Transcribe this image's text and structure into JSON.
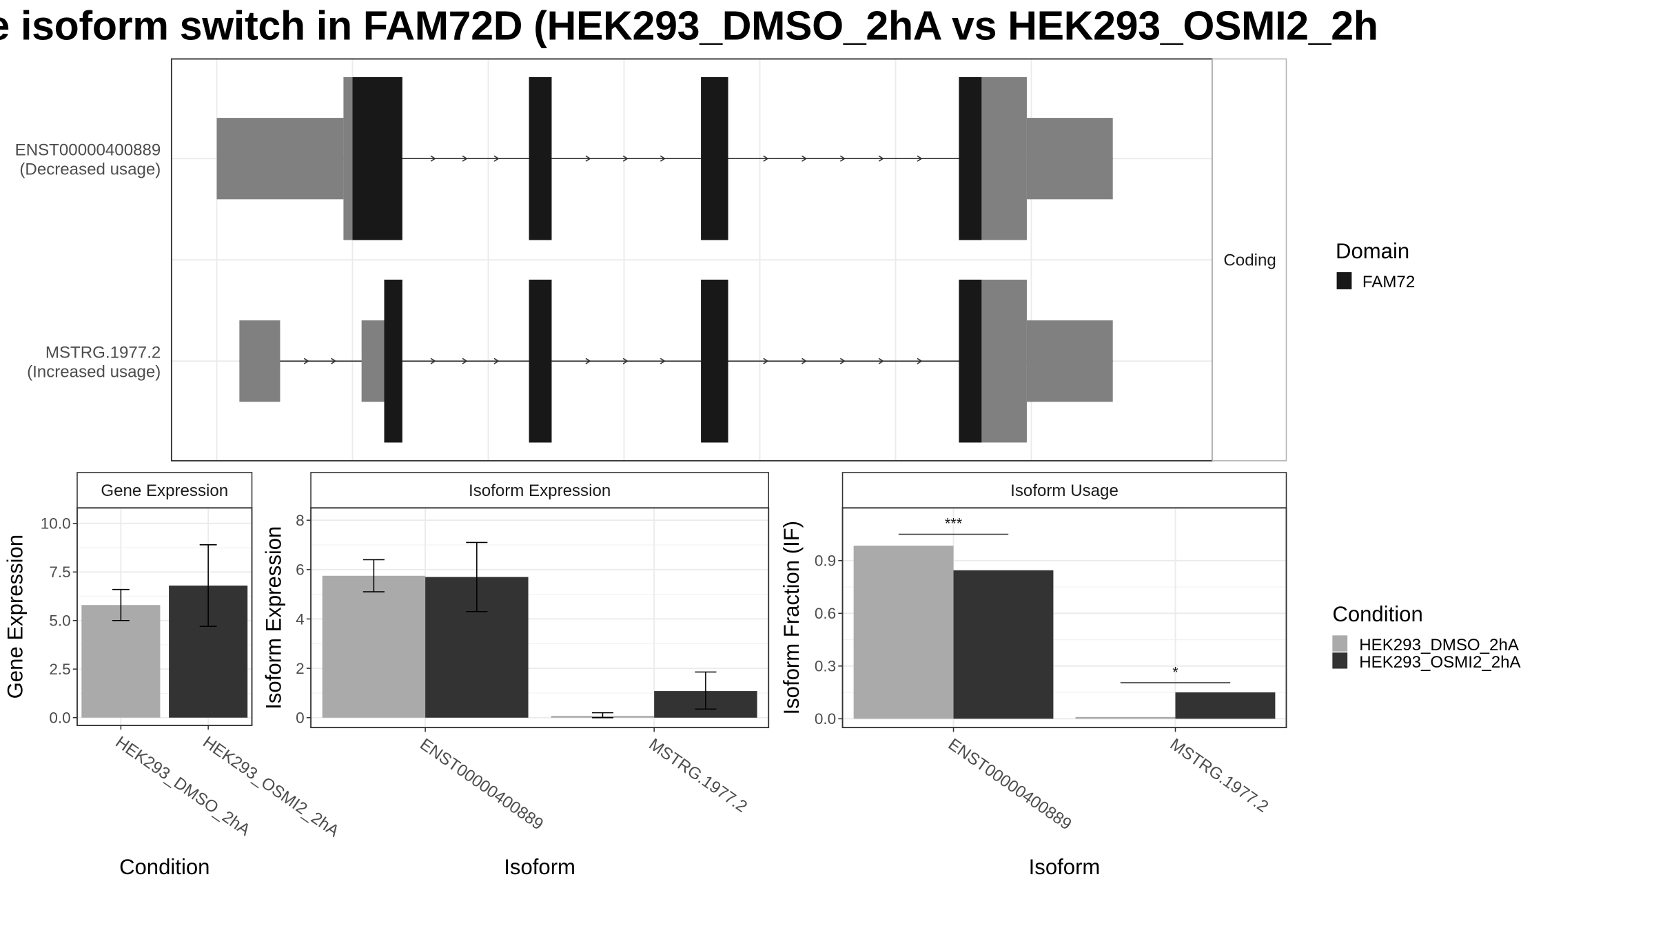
{
  "title": "e isoform switch in FAM72D (HEK293_DMSO_2hA vs HEK293_OSMI2_2h",
  "colors": {
    "cond1": "#aaaaaa",
    "cond2": "#333333",
    "utr": "#808080",
    "domain": "#181818",
    "grid": "#ebebeb",
    "panel_border": "#333333",
    "strip_fill": "#ffffff"
  },
  "chart_data": [
    {
      "type": "gene-structure",
      "facet_label": "Coding",
      "transcripts": [
        {
          "id": "ENST00000400889",
          "usage": "(Decreased usage)",
          "utr": [
            [
              0.0,
              1.4
            ],
            [
              8.95,
              9.9
            ]
          ],
          "coding": [
            [
              1.4,
              2.05
            ],
            [
              3.45,
              3.7
            ],
            [
              5.35,
              5.65
            ],
            [
              8.2,
              8.95
            ]
          ],
          "domain": [
            [
              1.5,
              2.05
            ],
            [
              3.45,
              3.7
            ],
            [
              5.35,
              5.65
            ],
            [
              8.2,
              8.45
            ]
          ]
        },
        {
          "id": "MSTRG.1977.2",
          "usage": "(Increased usage)",
          "utr": [
            [
              0.25,
              0.7
            ],
            [
              1.6,
              1.85
            ],
            [
              8.95,
              9.9
            ]
          ],
          "coding": [
            [
              1.85,
              2.05
            ],
            [
              3.45,
              3.7
            ],
            [
              5.35,
              5.65
            ],
            [
              8.2,
              8.95
            ]
          ],
          "domain": [
            [
              1.85,
              2.05
            ],
            [
              3.45,
              3.7
            ],
            [
              5.35,
              5.65
            ],
            [
              8.2,
              8.45
            ]
          ]
        }
      ],
      "legend": {
        "title": "Domain",
        "items": [
          "FAM72"
        ]
      }
    },
    {
      "type": "bar",
      "strip": "Gene Expression",
      "xlabel": "Condition",
      "ylabel": "Gene Expression",
      "ylim": [
        -0.4,
        10.8
      ],
      "yticks": [
        "0.0",
        "2.5",
        "5.0",
        "7.5",
        "10.0"
      ],
      "categories": [
        "HEK293_DMSO_2hA",
        "HEK293_OSMI2_2hA"
      ],
      "values": [
        5.8,
        6.8
      ],
      "errors": [
        [
          5.0,
          6.6
        ],
        [
          4.7,
          8.9
        ]
      ]
    },
    {
      "type": "bar",
      "strip": "Isoform Expression",
      "xlabel": "Isoform",
      "ylabel": "Isoform Expression",
      "ylim": [
        -0.4,
        8.5
      ],
      "yticks": [
        "0",
        "2",
        "4",
        "6",
        "8"
      ],
      "categories": [
        "ENST00000400889",
        "MSTRG.1977.2"
      ],
      "series": [
        {
          "name": "HEK293_DMSO_2hA",
          "values": [
            5.75,
            0.07
          ],
          "errors": [
            [
              5.1,
              6.4
            ],
            [
              0.0,
              0.2
            ]
          ]
        },
        {
          "name": "HEK293_OSMI2_2hA",
          "values": [
            5.7,
            1.08
          ],
          "errors": [
            [
              4.3,
              7.1
            ],
            [
              0.35,
              1.85
            ]
          ]
        }
      ]
    },
    {
      "type": "bar",
      "strip": "Isoform Usage",
      "xlabel": "Isoform",
      "ylabel": "Isoform Fraction (IF)",
      "ylim": [
        -0.05,
        1.2
      ],
      "yticks": [
        "0.0",
        "0.3",
        "0.6",
        "0.9"
      ],
      "categories": [
        "ENST00000400889",
        "MSTRG.1977.2"
      ],
      "series": [
        {
          "name": "HEK293_DMSO_2hA",
          "values": [
            0.985,
            0.01
          ]
        },
        {
          "name": "HEK293_OSMI2_2hA",
          "values": [
            0.845,
            0.15
          ]
        }
      ],
      "significance": [
        {
          "category": "ENST00000400889",
          "label": "***",
          "y": 1.05
        },
        {
          "category": "MSTRG.1977.2",
          "label": "*",
          "y": 0.205
        }
      ]
    }
  ],
  "condition_legend": {
    "title": "Condition",
    "items": [
      "HEK293_DMSO_2hA",
      "HEK293_OSMI2_2hA"
    ]
  }
}
